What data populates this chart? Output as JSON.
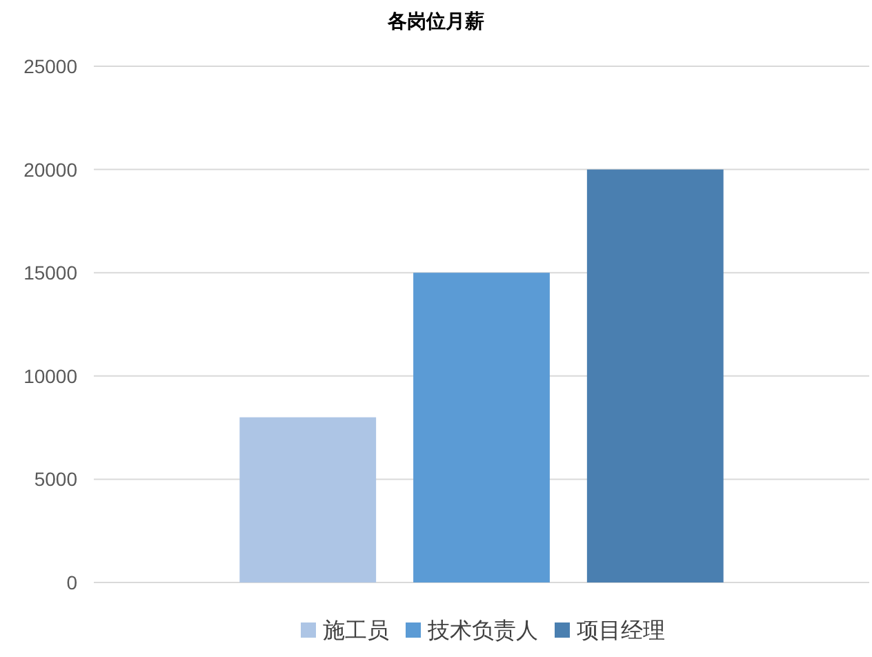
{
  "chart_data": {
    "type": "bar",
    "title": "各岗位月薪",
    "categories": [
      null
    ],
    "series": [
      {
        "name": "施工员",
        "color": "#adc5e5",
        "values": [
          8000
        ]
      },
      {
        "name": "技术负责人",
        "color": "#5b9bd5",
        "values": [
          15000
        ]
      },
      {
        "name": "项目经理",
        "color": "#4a7fb0",
        "values": [
          20000
        ]
      }
    ],
    "ylim": [
      0,
      25000
    ],
    "yticks": [
      0,
      5000,
      10000,
      15000,
      20000,
      25000
    ],
    "grid": "y",
    "legend": "bottom"
  }
}
